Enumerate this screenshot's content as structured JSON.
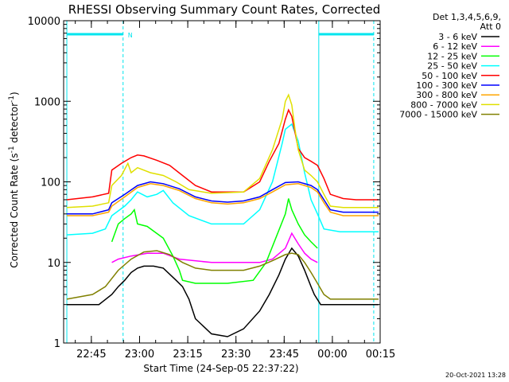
{
  "chart_data": {
    "type": "line",
    "title": "RHESSI Observing Summary Count Rates, Corrected",
    "xlabel": "Start Time (24-Sep-05 22:37:22)",
    "ylabel": "Corrected Count Rate (s",
    "ylabel_sup1": "-1",
    "ylabel_mid": " detector",
    "ylabel_sup2": "-1",
    "ylabel_end": ")",
    "x_start": "22:37:22",
    "xlim_minutes": [
      -1,
      97.5
    ],
    "x_ticks": [
      {
        "label": "22:45",
        "minute": 7.63
      },
      {
        "label": "23:00",
        "minute": 22.63
      },
      {
        "label": "23:15",
        "minute": 37.63
      },
      {
        "label": "23:30",
        "minute": 52.63
      },
      {
        "label": "23:45",
        "minute": 67.63
      },
      {
        "label": "00:00",
        "minute": 82.63
      },
      {
        "label": "00:15",
        "minute": 97.63
      }
    ],
    "y_scale": "log",
    "ylim": [
      1,
      10000
    ],
    "y_ticks": [
      {
        "label": "1",
        "value": 1
      },
      {
        "label": "10",
        "value": 10
      },
      {
        "label": "100",
        "value": 100
      },
      {
        "label": "1000",
        "value": 1000
      },
      {
        "label": "10000",
        "value": 10000
      }
    ],
    "legend_header": [
      "Det 1,3,4,5,6,9,",
      "Att 0"
    ],
    "legend_position": "right",
    "flag_label": "N",
    "vertical_markers_minutes": [
      {
        "minute": 0.0,
        "style": "solid"
      },
      {
        "minute": 17.5,
        "style": "dashed"
      },
      {
        "minute": 78.4,
        "style": "solid"
      },
      {
        "minute": 95.5,
        "style": "dashed"
      }
    ],
    "flag_bars": [
      {
        "from": 0.0,
        "to": 17.5,
        "level": 6800
      },
      {
        "from": 78.4,
        "to": 95.5,
        "level": 6800
      }
    ],
    "marker_color": "#00e5ee",
    "series": [
      {
        "name": "3 - 6 keV",
        "color": "#000000",
        "x": [
          0,
          10,
          14,
          16,
          18,
          20,
          22,
          24,
          27,
          30,
          34,
          36,
          38,
          40,
          45,
          50,
          55,
          60,
          63,
          66,
          68,
          70,
          72,
          74,
          76,
          77,
          79,
          82,
          86,
          90,
          97
        ],
        "y": [
          3,
          3,
          4,
          5,
          6,
          7.5,
          8.5,
          9,
          9,
          8.5,
          6,
          5,
          3.5,
          2,
          1.3,
          1.2,
          1.5,
          2.5,
          4,
          7,
          11,
          15,
          12,
          8,
          5,
          4,
          3,
          3,
          3,
          3,
          3
        ]
      },
      {
        "name": "6 - 12 keV",
        "color": "#ff00ff",
        "x": [
          14,
          16,
          20,
          25,
          30,
          35,
          45,
          55,
          60,
          64,
          68,
          70,
          72,
          74,
          76,
          78
        ],
        "y": [
          10,
          11,
          12,
          13,
          13,
          11,
          10,
          10,
          10,
          11,
          15,
          23,
          17,
          13,
          11,
          10
        ]
      },
      {
        "name": "12 - 25 keV",
        "color": "#00ff00",
        "x": [
          14,
          16,
          18,
          20,
          21,
          22,
          25,
          30,
          33,
          35,
          36,
          40,
          50,
          58,
          62,
          65,
          68,
          69,
          70,
          72,
          74,
          76,
          78
        ],
        "y": [
          18,
          30,
          35,
          40,
          45,
          30,
          28,
          20,
          12,
          8,
          6,
          5.5,
          5.5,
          6,
          10,
          20,
          40,
          62,
          45,
          30,
          22,
          18,
          15
        ]
      },
      {
        "name": "25 - 50 keV",
        "color": "#00ffff",
        "x": [
          0,
          8,
          12,
          14,
          18,
          20,
          22,
          25,
          28,
          30,
          33,
          38,
          45,
          55,
          60,
          64,
          67,
          68,
          70,
          72,
          74,
          76,
          78,
          80,
          85,
          90,
          97
        ],
        "y": [
          22,
          23,
          26,
          38,
          50,
          60,
          75,
          65,
          70,
          78,
          55,
          38,
          30,
          30,
          45,
          100,
          300,
          450,
          520,
          320,
          130,
          60,
          40,
          26,
          24,
          24,
          24
        ]
      },
      {
        "name": "50 - 100 keV",
        "color": "#ff0000",
        "x": [
          0,
          8,
          13,
          14,
          17,
          20,
          22,
          24,
          28,
          32,
          36,
          40,
          45,
          55,
          60,
          63,
          66,
          68,
          69,
          70,
          72,
          74,
          76,
          78,
          80,
          82,
          86,
          90,
          97
        ],
        "y": [
          60,
          65,
          72,
          140,
          170,
          200,
          215,
          210,
          185,
          160,
          120,
          90,
          75,
          75,
          100,
          180,
          300,
          600,
          780,
          650,
          260,
          200,
          180,
          160,
          110,
          70,
          62,
          60,
          60
        ]
      },
      {
        "name": "100 - 300 keV",
        "color": "#0000ff",
        "x": [
          0,
          8,
          13,
          14,
          18,
          22,
          26,
          30,
          35,
          40,
          45,
          50,
          55,
          60,
          64,
          68,
          72,
          76,
          78,
          80,
          82,
          86,
          97
        ],
        "y": [
          40,
          40,
          45,
          55,
          70,
          90,
          100,
          95,
          82,
          65,
          58,
          56,
          58,
          65,
          80,
          98,
          100,
          90,
          80,
          60,
          45,
          42,
          42
        ]
      },
      {
        "name": "300 - 800 keV",
        "color": "#ffa500",
        "x": [
          0,
          8,
          13,
          14,
          18,
          22,
          26,
          30,
          35,
          40,
          45,
          50,
          55,
          60,
          64,
          68,
          72,
          76,
          78,
          80,
          82,
          86,
          97
        ],
        "y": [
          38,
          38,
          42,
          50,
          65,
          85,
          95,
          90,
          78,
          62,
          55,
          53,
          55,
          62,
          75,
          92,
          95,
          85,
          75,
          55,
          42,
          38,
          38
        ]
      },
      {
        "name": "800 - 7000 keV",
        "color": "#e0e000",
        "x": [
          0,
          8,
          13,
          14,
          17,
          19,
          20,
          22,
          26,
          30,
          34,
          38,
          45,
          55,
          60,
          64,
          67,
          68,
          69,
          70,
          71,
          72,
          74,
          76,
          78,
          80,
          82,
          86,
          97
        ],
        "y": [
          48,
          50,
          55,
          90,
          120,
          170,
          130,
          150,
          130,
          120,
          100,
          80,
          72,
          75,
          110,
          250,
          600,
          1000,
          1200,
          900,
          450,
          250,
          140,
          120,
          100,
          70,
          50,
          48,
          48
        ]
      },
      {
        "name": "7000 - 15000 keV",
        "color": "#808000",
        "x": [
          0,
          8,
          12,
          16,
          20,
          24,
          28,
          32,
          36,
          40,
          45,
          50,
          55,
          60,
          64,
          68,
          70,
          72,
          74,
          76,
          78,
          80,
          82,
          86,
          97
        ],
        "y": [
          3.5,
          4,
          5,
          8,
          11,
          13.5,
          14,
          12.5,
          10,
          8.5,
          8,
          8,
          8,
          9,
          10.5,
          12.5,
          13,
          12.5,
          10,
          7.5,
          5.5,
          4,
          3.5,
          3.5,
          3.5
        ]
      }
    ]
  },
  "footer_stamp": "20-Oct-2021 13:28"
}
